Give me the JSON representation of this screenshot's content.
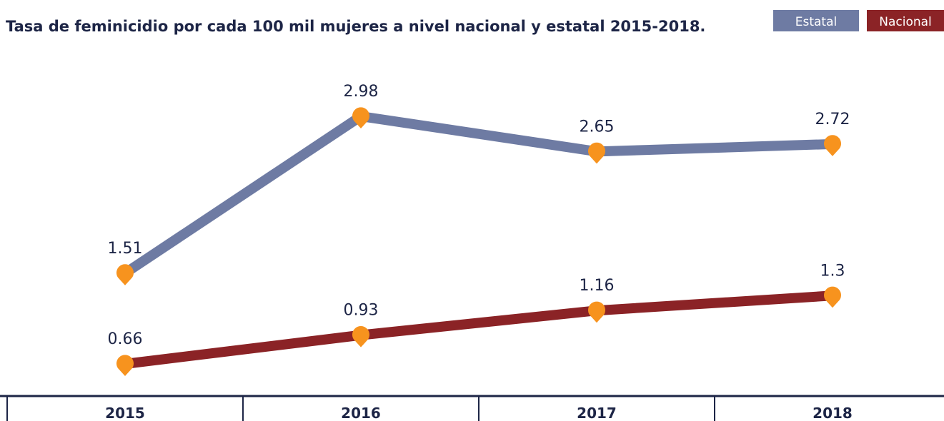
{
  "chart_data": {
    "type": "line",
    "title": "Tasa de feminicidio por cada 100 mil mujeres a nivel nacional y estatal 2015-2018.",
    "categories": [
      "2015",
      "2016",
      "2017",
      "2018"
    ],
    "marker_color": "#f7931e",
    "series": [
      {
        "name": "Estatal",
        "color": "#6e7ba3",
        "values": [
          1.51,
          2.98,
          2.65,
          2.72
        ]
      },
      {
        "name": "Nacional",
        "color": "#8b2326",
        "values": [
          0.66,
          0.93,
          1.16,
          1.3
        ]
      }
    ]
  }
}
